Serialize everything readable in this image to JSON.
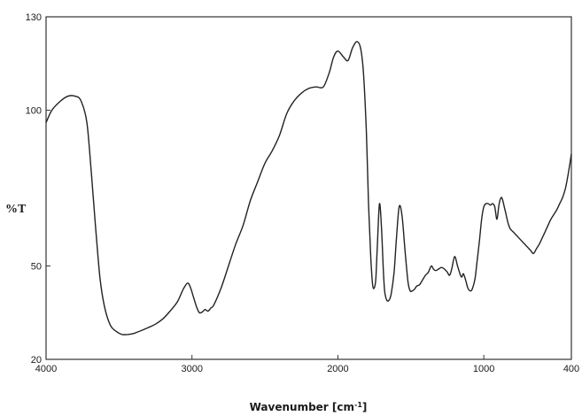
{
  "chart_data": {
    "type": "line",
    "title": "",
    "xlabel": "Wavenumber [cm",
    "xlabel_sup": "-1",
    "xlabel_suffix": "]",
    "ylabel": "%T",
    "xlim": [
      4000,
      400
    ],
    "ylim": [
      20,
      130
    ],
    "x_reversed": true,
    "grid": false,
    "x_ticks": [
      {
        "value": 4000,
        "label": "4000"
      },
      {
        "value": 3000,
        "label": "3000"
      },
      {
        "value": 2000,
        "label": "2000"
      },
      {
        "value": 1000,
        "label": "1000"
      },
      {
        "value": 400,
        "label": "400"
      }
    ],
    "y_ticks": [
      {
        "value": 130,
        "label": "130"
      },
      {
        "value": 100,
        "label": "100"
      },
      {
        "value": 50,
        "label": "50"
      },
      {
        "value": 20,
        "label": "20"
      }
    ],
    "series": [
      {
        "color": "#222222",
        "x": [
          4000,
          3960,
          3900,
          3850,
          3800,
          3760,
          3720,
          3690,
          3660,
          3630,
          3600,
          3560,
          3520,
          3480,
          3440,
          3400,
          3350,
          3300,
          3250,
          3200,
          3150,
          3100,
          3060,
          3030,
          3010,
          2990,
          2970,
          2950,
          2930,
          2910,
          2890,
          2870,
          2850,
          2800,
          2750,
          2700,
          2650,
          2600,
          2550,
          2500,
          2450,
          2400,
          2350,
          2300,
          2250,
          2200,
          2150,
          2100,
          2060,
          2030,
          2000,
          1960,
          1930,
          1900,
          1870,
          1845,
          1825,
          1805,
          1790,
          1775,
          1762,
          1750,
          1740,
          1730,
          1715,
          1700,
          1690,
          1680,
          1665,
          1650,
          1635,
          1615,
          1600,
          1580,
          1560,
          1540,
          1520,
          1505,
          1490,
          1475,
          1460,
          1440,
          1420,
          1400,
          1380,
          1360,
          1345,
          1330,
          1310,
          1290,
          1270,
          1250,
          1235,
          1220,
          1200,
          1180,
          1160,
          1150,
          1140,
          1125,
          1110,
          1095,
          1080,
          1060,
          1045,
          1030,
          1015,
          1000,
          985,
          970,
          955,
          940,
          925,
          910,
          895,
          880,
          870,
          860,
          850,
          835,
          820,
          800,
          780,
          760,
          740,
          720,
          700,
          680,
          660,
          640,
          620,
          600,
          580,
          560,
          540,
          520,
          500,
          480,
          460,
          440,
          420,
          400
        ],
        "y": [
          96,
          100,
          103,
          104.5,
          104.5,
          103,
          96,
          80,
          62,
          46,
          37,
          31,
          29,
          28,
          28,
          28.3,
          29.2,
          30.2,
          31.3,
          33,
          35.5,
          38.5,
          42.5,
          44.5,
          43,
          40,
          37,
          35,
          35.2,
          36,
          35.5,
          36.5,
          37.5,
          43,
          50,
          57,
          63,
          71,
          77,
          83,
          87,
          92,
          99,
          103,
          105.5,
          107,
          107.5,
          107.5,
          112,
          117,
          119,
          117,
          116,
          120,
          122,
          120,
          112,
          93,
          70,
          53,
          44,
          43,
          46,
          56,
          70,
          61,
          50,
          42,
          39,
          39,
          41,
          48,
          58,
          69,
          66,
          55,
          45,
          42,
          42,
          42.5,
          43.5,
          44,
          45.5,
          47,
          48,
          50,
          49,
          48.5,
          49,
          49.5,
          49,
          48,
          47,
          49,
          53,
          50,
          47,
          46.5,
          47.5,
          45.5,
          43,
          42,
          42.5,
          46,
          52,
          58,
          65,
          69,
          70,
          70,
          69.5,
          70,
          69,
          65,
          70,
          72,
          71,
          69,
          67,
          64,
          62,
          61,
          60,
          59,
          58,
          57,
          56,
          55,
          54,
          55.5,
          57,
          59,
          61,
          63,
          65,
          66.5,
          68,
          70,
          72,
          75,
          80,
          86
        ]
      }
    ]
  }
}
